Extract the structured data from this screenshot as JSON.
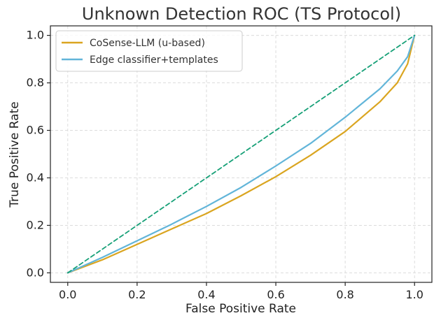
{
  "chart_data": {
    "type": "line",
    "title": "Unknown Detection ROC (TS Protocol)",
    "xlabel": "False Positive Rate",
    "ylabel": "True Positive Rate",
    "xlim": [
      -0.05,
      1.05
    ],
    "ylim": [
      -0.04,
      1.04
    ],
    "xticks": [
      0.0,
      0.2,
      0.4,
      0.6,
      0.8,
      1.0
    ],
    "yticks": [
      0.0,
      0.2,
      0.4,
      0.6,
      0.8,
      1.0
    ],
    "tick_labels": {
      "x": [
        "0.0",
        "0.2",
        "0.4",
        "0.6",
        "0.8",
        "1.0"
      ],
      "y": [
        "0.0",
        "0.2",
        "0.4",
        "0.6",
        "0.8",
        "1.0"
      ]
    },
    "grid": true,
    "legend_position": "top-left",
    "series": [
      {
        "name": "CoSense-LLM (u-based)",
        "color": "#DAA520",
        "style": "solid",
        "x": [
          0.0,
          0.1,
          0.2,
          0.3,
          0.4,
          0.5,
          0.6,
          0.7,
          0.8,
          0.9,
          0.95,
          0.98,
          1.0
        ],
        "y": [
          0.0,
          0.055,
          0.12,
          0.185,
          0.25,
          0.325,
          0.405,
          0.495,
          0.595,
          0.72,
          0.8,
          0.88,
          1.0
        ]
      },
      {
        "name": "Edge classifier+templates",
        "color": "#62B5D9",
        "style": "solid",
        "x": [
          0.0,
          0.1,
          0.2,
          0.3,
          0.4,
          0.5,
          0.6,
          0.7,
          0.8,
          0.9,
          0.95,
          0.98,
          1.0
        ],
        "y": [
          0.0,
          0.065,
          0.135,
          0.205,
          0.28,
          0.36,
          0.45,
          0.545,
          0.655,
          0.775,
          0.85,
          0.91,
          1.0
        ]
      },
      {
        "name": "",
        "color": "#16A077",
        "style": "dashed",
        "x": [
          0.0,
          1.0
        ],
        "y": [
          0.0,
          1.0
        ]
      }
    ]
  }
}
